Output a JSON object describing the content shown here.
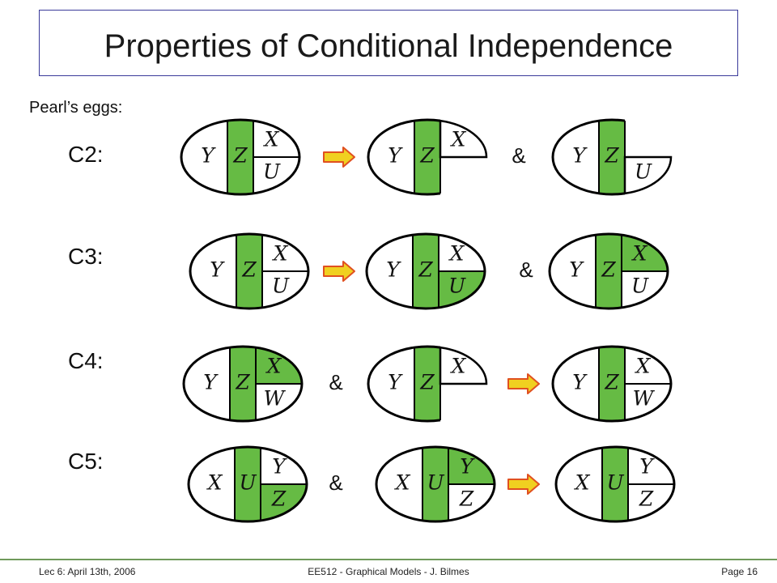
{
  "title": "Properties of Conditional Independence",
  "subtitle": "Pearl’s eggs:",
  "colors": {
    "green": "#66bb44",
    "arrow_fill": "#f0d020",
    "arrow_stroke": "#e05020"
  },
  "rows": [
    {
      "label": "C2:",
      "items": [
        {
          "kind": "egg",
          "left": "Y",
          "mid": "Z",
          "top": "X",
          "bottom": "U",
          "top_fill": false,
          "bottom_fill": false,
          "shape": "full"
        },
        {
          "kind": "arrow"
        },
        {
          "kind": "egg",
          "left": "Y",
          "mid": "Z",
          "top": "X",
          "bottom": "",
          "top_fill": false,
          "bottom_fill": false,
          "shape": "top-only"
        },
        {
          "kind": "amp",
          "text": "&"
        },
        {
          "kind": "egg",
          "left": "Y",
          "mid": "Z",
          "top": "",
          "bottom": "U",
          "top_fill": false,
          "bottom_fill": false,
          "shape": "bottom-only"
        }
      ]
    },
    {
      "label": "C3:",
      "items": [
        {
          "kind": "egg",
          "left": "Y",
          "mid": "Z",
          "top": "X",
          "bottom": "U",
          "top_fill": false,
          "bottom_fill": false,
          "shape": "full"
        },
        {
          "kind": "arrow"
        },
        {
          "kind": "egg",
          "left": "Y",
          "mid": "Z",
          "top": "X",
          "bottom": "U",
          "top_fill": false,
          "bottom_fill": true,
          "shape": "full"
        },
        {
          "kind": "amp",
          "text": "&"
        },
        {
          "kind": "egg",
          "left": "Y",
          "mid": "Z",
          "top": "X",
          "bottom": "U",
          "top_fill": true,
          "bottom_fill": false,
          "shape": "full"
        }
      ]
    },
    {
      "label": "C4:",
      "items": [
        {
          "kind": "egg",
          "left": "Y",
          "mid": "Z",
          "top": "X",
          "bottom": "W",
          "top_fill": true,
          "bottom_fill": false,
          "shape": "full"
        },
        {
          "kind": "amp",
          "text": "&"
        },
        {
          "kind": "egg",
          "left": "Y",
          "mid": "Z",
          "top": "X",
          "bottom": "",
          "top_fill": false,
          "bottom_fill": false,
          "shape": "top-only"
        },
        {
          "kind": "arrow"
        },
        {
          "kind": "egg",
          "left": "Y",
          "mid": "Z",
          "top": "X",
          "bottom": "W",
          "top_fill": false,
          "bottom_fill": false,
          "shape": "full"
        }
      ]
    },
    {
      "label": "C5:",
      "items": [
        {
          "kind": "egg",
          "left": "X",
          "mid": "U",
          "top": "Y",
          "bottom": "Z",
          "top_fill": false,
          "bottom_fill": true,
          "shape": "full"
        },
        {
          "kind": "amp",
          "text": "&"
        },
        {
          "kind": "egg",
          "left": "X",
          "mid": "U",
          "top": "Y",
          "bottom": "Z",
          "top_fill": true,
          "bottom_fill": false,
          "shape": "full"
        },
        {
          "kind": "arrow"
        },
        {
          "kind": "egg",
          "left": "X",
          "mid": "U",
          "top": "Y",
          "bottom": "Z",
          "top_fill": false,
          "bottom_fill": false,
          "shape": "full"
        }
      ]
    }
  ],
  "footer": {
    "left": "Lec 6: April 13th, 2006",
    "center": "EE512 - Graphical Models - J. Bilmes",
    "right": "Page 16"
  }
}
